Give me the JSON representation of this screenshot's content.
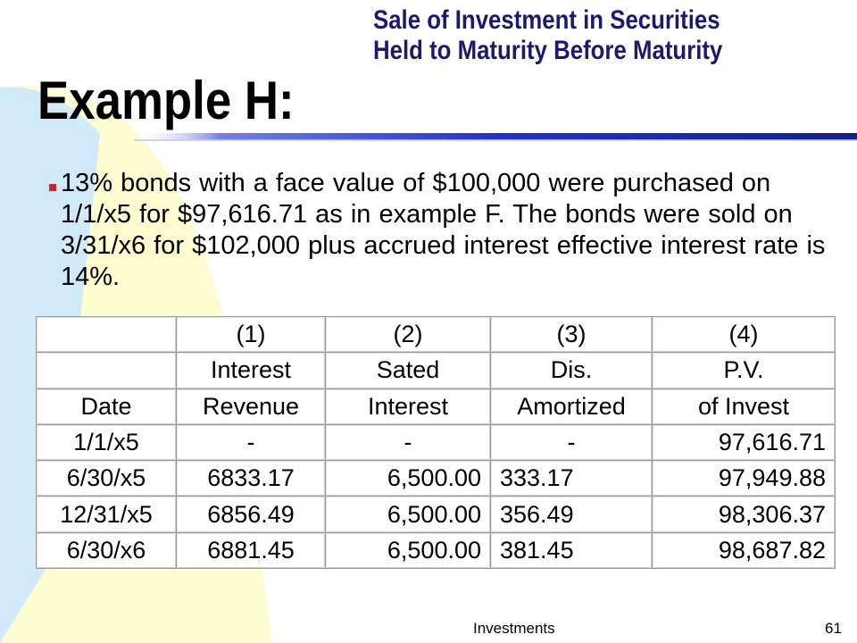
{
  "slide": {
    "subtitle_line1": "Sale of Investment in Securities",
    "subtitle_line2": "Held to Maturity Before Maturity",
    "title": "Example H:",
    "bullet_text": "13% bonds with a face value of $100,000 were purchased on 1/1/x5 for $97,616.71 as in example F. The bonds were sold on 3/31/x6 for $102,000 plus accrued interest effective interest rate is 14%.",
    "footer_center": "Investments",
    "footer_page": "61"
  },
  "colors": {
    "background_fill": "#fdfdd2",
    "background_accent": "#cfe9fb",
    "title_rule": "#2233cc",
    "bullet_marker": "#c8281e",
    "subtitle_text": "#1a1a6e"
  },
  "table": {
    "header_rows": [
      [
        "",
        "(1)",
        "(2)",
        "(3)",
        "(4)"
      ],
      [
        "",
        "Interest",
        "Sated",
        "Dis.",
        "P.V."
      ],
      [
        "Date",
        "Revenue",
        "Interest",
        "Amortized",
        "of Invest"
      ]
    ],
    "rows": [
      {
        "date": "1/1/x5",
        "revenue": "-",
        "interest": "-",
        "amortized": "-",
        "pv": "97,616.71"
      },
      {
        "date": "6/30/x5",
        "revenue": "6833.17",
        "interest": "6,500.00",
        "amortized": "333.17",
        "pv": "97,949.88"
      },
      {
        "date": "12/31/x5",
        "revenue": "6856.49",
        "interest": "6,500.00",
        "amortized": "356.49",
        "pv": "98,306.37"
      },
      {
        "date": "6/30/x6",
        "revenue": "6881.45",
        "interest": "6,500.00",
        "amortized": "381.45",
        "pv": "98,687.82"
      }
    ]
  }
}
